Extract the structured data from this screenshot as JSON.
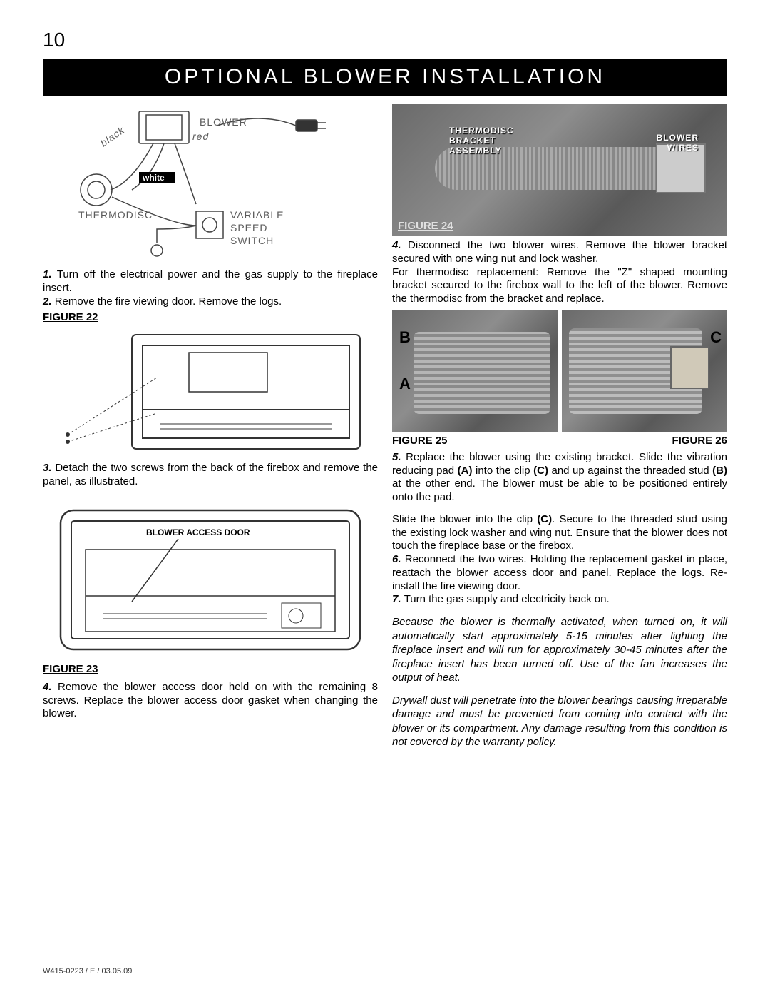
{
  "page_number": "10",
  "banner_title": "OPTIONAL BLOWER INSTALLATION",
  "left": {
    "wiring": {
      "labels": {
        "blower": "BLOWER",
        "thermodisc": "THERMODISC",
        "vspeed1": "VARIABLE",
        "vspeed2": "SPEED",
        "vspeed3": "SWITCH",
        "red": "red",
        "white": "white",
        "black": "black"
      }
    },
    "step1": "Turn off the electrical power and the gas supply to the fireplace insert.",
    "step2": "Remove the fire viewing door. Remove the logs.",
    "fig22": "FIGURE  22",
    "step3": "Detach the two screws from the back of the firebox and remove the panel, as illustrated.",
    "blower_door_label": "BLOWER ACCESS DOOR",
    "fig23": "FIGURE  23",
    "step4": "Remove the blower access door held on with the remaining 8 screws. Replace the blower access door gasket when changing the blower."
  },
  "right": {
    "photo24": {
      "thermo1": "THERMODISC",
      "thermo2": "BRACKET",
      "thermo3": "ASSEMBLY",
      "bw1": "BLOWER",
      "bw2": "WIRES",
      "fig24": "FIGURE 24"
    },
    "step4r_a": "Disconnect the two blower wires. Remove the blower bracket secured with one wing nut and lock washer.",
    "step4r_b": "For thermodisc replacement:  Remove the \"Z\" shaped mounting bracket secured to the firebox wall to the left of the blower. Remove the thermodisc from the bracket and replace.",
    "markers": {
      "A": "A",
      "B": "B",
      "C": "C"
    },
    "fig25": "FIGURE 25",
    "fig26": "FIGURE 26",
    "step5": "Replace the blower using the existing bracket. Slide the vibration reducing pad (A) into the clip (C) and up against the threaded stud (B) at the other end. The blower must be able to be positioned entirely onto the pad.",
    "slide": "Slide the blower into the clip (C). Secure to the threaded stud using the existing lock washer and wing nut. Ensure that the blower does not touch the fireplace base or the firebox.",
    "step6": "Reconnect the two wires. Holding the replacement gasket in place, reattach the blower access door and panel. Replace the logs. Re-install the fire viewing door.",
    "step7": "Turn the gas supply and electricity back on.",
    "italic1": "Because the blower is thermally activated, when turned on, it will automatically start approximately 5-15 minutes after lighting the fireplace insert and will run for approximately 30-45 minutes after the fireplace insert has been turned off. Use of the fan increases the output of heat.",
    "italic2": "Drywall dust will penetrate into the blower bearings causing irreparable damage and must be prevented from coming into contact with the blower or its compartment. Any damage resulting from this condition is not covered by the warranty policy."
  },
  "footer": "W415-0223 / E / 03.05.09",
  "colors": {
    "banner_bg": "#000000",
    "banner_fg": "#ffffff",
    "diagram_stroke": "#555555"
  }
}
